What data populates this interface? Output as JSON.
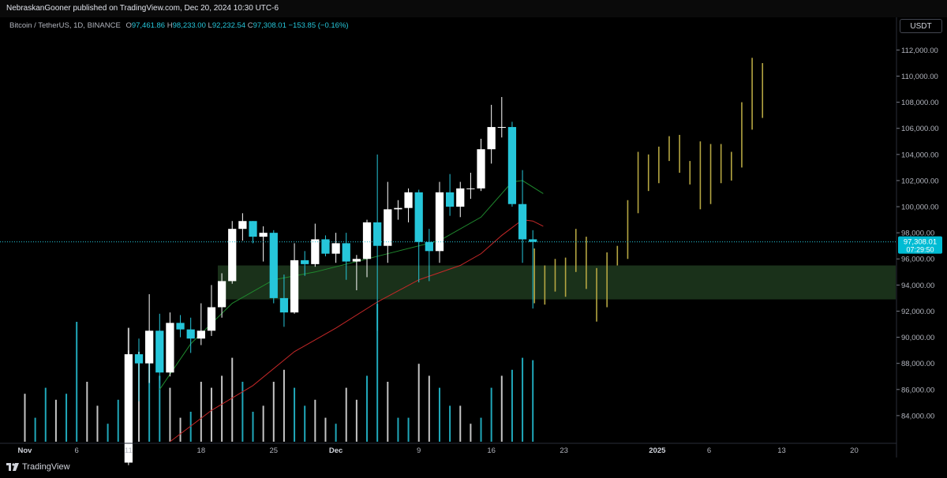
{
  "header": {
    "published_text": "NebraskanGooner published on TradingView.com, Dec 20, 2024 10:30 UTC-6"
  },
  "legend": {
    "symbol": "Bitcoin / TetherUS, 1D, BINANCE",
    "o_label": "O",
    "o": "97,461.86",
    "h_label": "H",
    "h": "98,233.00",
    "l_label": "L",
    "l": "92,232.54",
    "c_label": "C",
    "c": "97,308.01",
    "change": "−153.85 (−0.16%)"
  },
  "currency_button": "USDT",
  "last_price": {
    "label": "97,308.01",
    "countdown": "07:29:50",
    "value": 97308.01
  },
  "footer": {
    "brand": "TradingView"
  },
  "colors": {
    "up": "#ffffff",
    "down": "#26c6da",
    "projection": "#b5a642",
    "zone": "#1e3a1e",
    "ema_green": "#1f8a2e",
    "ema_red": "#c62828",
    "background": "#000000"
  },
  "chart_data": {
    "type": "candlestick",
    "y_axis": {
      "ticks": [
        {
          "value": 84000,
          "label": "84,000.00"
        },
        {
          "value": 86000,
          "label": "86,000.00"
        },
        {
          "value": 88000,
          "label": "88,000.00"
        },
        {
          "value": 90000,
          "label": "90,000.00"
        },
        {
          "value": 92000,
          "label": "92,000.00"
        },
        {
          "value": 94000,
          "label": "94,000.00"
        },
        {
          "value": 96000,
          "label": "96,000.00"
        },
        {
          "value": 98000,
          "label": "98,000.00"
        },
        {
          "value": 100000,
          "label": "100,000.00"
        },
        {
          "value": 102000,
          "label": "102,000.00"
        },
        {
          "value": 104000,
          "label": "104,000.00"
        },
        {
          "value": 106000,
          "label": "106,000.00"
        },
        {
          "value": 108000,
          "label": "108,000.00"
        },
        {
          "value": 110000,
          "label": "110,000.00"
        },
        {
          "value": 112000,
          "label": "112,000.00"
        }
      ],
      "range": [
        82000,
        114500
      ]
    },
    "x_axis": {
      "day_range": [
        "2024-11-01",
        "2025-01-24"
      ],
      "ticks": [
        {
          "date": "2024-11-01",
          "label": "Nov"
        },
        {
          "date": "2024-11-06",
          "label": "6"
        },
        {
          "date": "2024-11-11",
          "label": "11"
        },
        {
          "date": "2024-11-18",
          "label": "18"
        },
        {
          "date": "2024-11-25",
          "label": "25"
        },
        {
          "date": "2024-12-01",
          "label": "Dec"
        },
        {
          "date": "2024-12-09",
          "label": "9"
        },
        {
          "date": "2024-12-16",
          "label": "16"
        },
        {
          "date": "2024-12-23",
          "label": "23"
        },
        {
          "date": "2025-01-01",
          "label": "2025"
        },
        {
          "date": "2025-01-06",
          "label": "6"
        },
        {
          "date": "2025-01-13",
          "label": "13"
        },
        {
          "date": "2025-01-20",
          "label": "20"
        }
      ]
    },
    "candles": [
      {
        "date": "2024-11-11",
        "o": 80400,
        "h": 89000,
        "l": 80200,
        "c": 88700
      },
      {
        "date": "2024-11-12",
        "o": 88700,
        "h": 89900,
        "l": 85100,
        "c": 88000
      },
      {
        "date": "2024-11-13",
        "o": 88000,
        "h": 93300,
        "l": 86500,
        "c": 90500
      },
      {
        "date": "2024-11-14",
        "o": 90500,
        "h": 91800,
        "l": 86700,
        "c": 87300
      },
      {
        "date": "2024-11-15",
        "o": 87300,
        "h": 91900,
        "l": 87000,
        "c": 91100
      },
      {
        "date": "2024-11-16",
        "o": 91100,
        "h": 91700,
        "l": 90000,
        "c": 90600
      },
      {
        "date": "2024-11-17",
        "o": 90600,
        "h": 91500,
        "l": 88800,
        "c": 89900
      },
      {
        "date": "2024-11-18",
        "o": 89900,
        "h": 92600,
        "l": 89400,
        "c": 90500
      },
      {
        "date": "2024-11-19",
        "o": 90500,
        "h": 94000,
        "l": 90100,
        "c": 92300
      },
      {
        "date": "2024-11-20",
        "o": 92300,
        "h": 94900,
        "l": 91500,
        "c": 94300
      },
      {
        "date": "2024-11-21",
        "o": 94300,
        "h": 98900,
        "l": 94100,
        "c": 98300
      },
      {
        "date": "2024-11-22",
        "o": 98300,
        "h": 99500,
        "l": 97400,
        "c": 98900
      },
      {
        "date": "2024-11-23",
        "o": 98900,
        "h": 98900,
        "l": 97200,
        "c": 97700
      },
      {
        "date": "2024-11-24",
        "o": 97700,
        "h": 98500,
        "l": 95800,
        "c": 98000
      },
      {
        "date": "2024-11-25",
        "o": 98000,
        "h": 98200,
        "l": 92600,
        "c": 93000
      },
      {
        "date": "2024-11-26",
        "o": 93000,
        "h": 94800,
        "l": 90800,
        "c": 91900
      },
      {
        "date": "2024-11-27",
        "o": 91900,
        "h": 97200,
        "l": 91800,
        "c": 95900
      },
      {
        "date": "2024-11-28",
        "o": 95900,
        "h": 96600,
        "l": 94700,
        "c": 95600
      },
      {
        "date": "2024-11-29",
        "o": 95600,
        "h": 98700,
        "l": 95400,
        "c": 97500
      },
      {
        "date": "2024-11-30",
        "o": 97500,
        "h": 97800,
        "l": 96200,
        "c": 96400
      },
      {
        "date": "2024-12-01",
        "o": 96400,
        "h": 98000,
        "l": 95700,
        "c": 97200
      },
      {
        "date": "2024-12-02",
        "o": 97200,
        "h": 98000,
        "l": 94400,
        "c": 95800
      },
      {
        "date": "2024-12-03",
        "o": 95800,
        "h": 96300,
        "l": 93600,
        "c": 96000
      },
      {
        "date": "2024-12-04",
        "o": 96000,
        "h": 99000,
        "l": 94600,
        "c": 98800
      },
      {
        "date": "2024-12-05",
        "o": 98800,
        "h": 104000,
        "l": 90500,
        "c": 97000
      },
      {
        "date": "2024-12-06",
        "o": 97000,
        "h": 101900,
        "l": 95700,
        "c": 99800
      },
      {
        "date": "2024-12-07",
        "o": 99800,
        "h": 100500,
        "l": 99000,
        "c": 99900
      },
      {
        "date": "2024-12-08",
        "o": 99900,
        "h": 101400,
        "l": 98800,
        "c": 101100
      },
      {
        "date": "2024-12-09",
        "o": 101100,
        "h": 101300,
        "l": 94200,
        "c": 97300
      },
      {
        "date": "2024-12-10",
        "o": 97300,
        "h": 98300,
        "l": 94300,
        "c": 96600
      },
      {
        "date": "2024-12-11",
        "o": 96600,
        "h": 101900,
        "l": 95700,
        "c": 101100
      },
      {
        "date": "2024-12-12",
        "o": 101100,
        "h": 102500,
        "l": 99300,
        "c": 100000
      },
      {
        "date": "2024-12-13",
        "o": 100000,
        "h": 101900,
        "l": 99200,
        "c": 101400
      },
      {
        "date": "2024-12-14",
        "o": 101400,
        "h": 102600,
        "l": 100600,
        "c": 101400
      },
      {
        "date": "2024-12-15",
        "o": 101400,
        "h": 105200,
        "l": 101200,
        "c": 104400
      },
      {
        "date": "2024-12-16",
        "o": 104400,
        "h": 107800,
        "l": 103300,
        "c": 106100
      },
      {
        "date": "2024-12-17",
        "o": 106100,
        "h": 108400,
        "l": 105300,
        "c": 106100
      },
      {
        "date": "2024-12-18",
        "o": 106100,
        "h": 106500,
        "l": 100000,
        "c": 100200
      },
      {
        "date": "2024-12-19",
        "o": 100200,
        "h": 102800,
        "l": 95700,
        "c": 97500
      },
      {
        "date": "2024-12-20",
        "o": 97500,
        "h": 98200,
        "l": 92200,
        "c": 97300
      }
    ],
    "volume": [
      {
        "date": "2024-11-01",
        "v": 0.4
      },
      {
        "date": "2024-11-02",
        "v": 0.2
      },
      {
        "date": "2024-11-03",
        "v": 0.45
      },
      {
        "date": "2024-11-04",
        "v": 0.35
      },
      {
        "date": "2024-11-05",
        "v": 0.4
      },
      {
        "date": "2024-11-06",
        "v": 1.0
      },
      {
        "date": "2024-11-07",
        "v": 0.5
      },
      {
        "date": "2024-11-08",
        "v": 0.3
      },
      {
        "date": "2024-11-09",
        "v": 0.15
      },
      {
        "date": "2024-11-10",
        "v": 0.35
      },
      {
        "date": "2024-11-11",
        "v": 0.95
      },
      {
        "date": "2024-11-12",
        "v": 0.75
      },
      {
        "date": "2024-11-13",
        "v": 0.85
      },
      {
        "date": "2024-11-14",
        "v": 0.55
      },
      {
        "date": "2024-11-15",
        "v": 0.45
      },
      {
        "date": "2024-11-16",
        "v": 0.2
      },
      {
        "date": "2024-11-17",
        "v": 0.25
      },
      {
        "date": "2024-11-18",
        "v": 0.5
      },
      {
        "date": "2024-11-19",
        "v": 0.45
      },
      {
        "date": "2024-11-20",
        "v": 0.55
      },
      {
        "date": "2024-11-21",
        "v": 0.7
      },
      {
        "date": "2024-11-22",
        "v": 0.5
      },
      {
        "date": "2024-11-23",
        "v": 0.25
      },
      {
        "date": "2024-11-24",
        "v": 0.3
      },
      {
        "date": "2024-11-25",
        "v": 0.5
      },
      {
        "date": "2024-11-26",
        "v": 0.6
      },
      {
        "date": "2024-11-27",
        "v": 0.45
      },
      {
        "date": "2024-11-28",
        "v": 0.3
      },
      {
        "date": "2024-11-29",
        "v": 0.35
      },
      {
        "date": "2024-11-30",
        "v": 0.2
      },
      {
        "date": "2024-12-01",
        "v": 0.15
      },
      {
        "date": "2024-12-02",
        "v": 0.45
      },
      {
        "date": "2024-12-03",
        "v": 0.35
      },
      {
        "date": "2024-12-04",
        "v": 0.55
      },
      {
        "date": "2024-12-05",
        "v": 1.15
      },
      {
        "date": "2024-12-06",
        "v": 0.5
      },
      {
        "date": "2024-12-07",
        "v": 0.2
      },
      {
        "date": "2024-12-08",
        "v": 0.2
      },
      {
        "date": "2024-12-09",
        "v": 0.65
      },
      {
        "date": "2024-12-10",
        "v": 0.55
      },
      {
        "date": "2024-12-11",
        "v": 0.45
      },
      {
        "date": "2024-12-12",
        "v": 0.3
      },
      {
        "date": "2024-12-13",
        "v": 0.3
      },
      {
        "date": "2024-12-14",
        "v": 0.15
      },
      {
        "date": "2024-12-15",
        "v": 0.2
      },
      {
        "date": "2024-12-16",
        "v": 0.45
      },
      {
        "date": "2024-12-17",
        "v": 0.55
      },
      {
        "date": "2024-12-18",
        "v": 0.6
      },
      {
        "date": "2024-12-19",
        "v": 0.7
      },
      {
        "date": "2024-12-20",
        "v": 0.68
      }
    ],
    "volume_dirs": "uddudduudduudduuduuuudduuudduuduuddudduudduudduddd",
    "ema_green": [
      [
        13,
        86000
      ],
      [
        16,
        89500
      ],
      [
        20,
        92600
      ],
      [
        24,
        94400
      ],
      [
        28,
        95000
      ],
      [
        32,
        95800
      ],
      [
        36,
        96600
      ],
      [
        40,
        97400
      ],
      [
        44,
        99200
      ],
      [
        47,
        101900
      ],
      [
        48,
        102000
      ],
      [
        50,
        101000
      ]
    ],
    "ema_red": [
      [
        14,
        82000
      ],
      [
        18,
        84400
      ],
      [
        22,
        86300
      ],
      [
        26,
        88900
      ],
      [
        30,
        90700
      ],
      [
        34,
        92700
      ],
      [
        38,
        94400
      ],
      [
        42,
        95500
      ],
      [
        44,
        96400
      ],
      [
        46,
        97800
      ],
      [
        48,
        99000
      ],
      [
        49,
        98900
      ],
      [
        50,
        98500
      ]
    ],
    "zone": {
      "from": "2024-11-20",
      "to": "2025-01-24",
      "low": 92900,
      "high": 95500
    },
    "projection": [
      {
        "date": "2024-12-20",
        "o": 96800,
        "h": 96800,
        "l": 92600,
        "c": 93000
      },
      {
        "date": "2024-12-21",
        "o": 93000,
        "h": 95500,
        "l": 92500,
        "c": 95200
      },
      {
        "date": "2024-12-22",
        "o": 95200,
        "h": 96000,
        "l": 93500,
        "c": 94000
      },
      {
        "date": "2024-12-23",
        "o": 94000,
        "h": 96100,
        "l": 93100,
        "c": 95800
      },
      {
        "date": "2024-12-24",
        "o": 95800,
        "h": 98300,
        "l": 95000,
        "c": 97200
      },
      {
        "date": "2024-12-25",
        "o": 97200,
        "h": 97700,
        "l": 93700,
        "c": 94500
      },
      {
        "date": "2024-12-26",
        "o": 94500,
        "h": 95300,
        "l": 91200,
        "c": 92500
      },
      {
        "date": "2024-12-27",
        "o": 92500,
        "h": 96500,
        "l": 92300,
        "c": 96000
      },
      {
        "date": "2024-12-28",
        "o": 96000,
        "h": 97000,
        "l": 95500,
        "c": 96800
      },
      {
        "date": "2024-12-29",
        "o": 96800,
        "h": 100500,
        "l": 96000,
        "c": 100200
      },
      {
        "date": "2024-12-30",
        "o": 100200,
        "h": 104200,
        "l": 99500,
        "c": 103500
      },
      {
        "date": "2024-12-31",
        "o": 103500,
        "h": 104000,
        "l": 101200,
        "c": 102000
      },
      {
        "date": "2025-01-01",
        "o": 102000,
        "h": 104600,
        "l": 101800,
        "c": 104400
      },
      {
        "date": "2025-01-02",
        "o": 104400,
        "h": 105400,
        "l": 103500,
        "c": 105000
      },
      {
        "date": "2025-01-03",
        "o": 105000,
        "h": 105500,
        "l": 102600,
        "c": 103000
      },
      {
        "date": "2025-01-04",
        "o": 103000,
        "h": 103500,
        "l": 101700,
        "c": 102800
      },
      {
        "date": "2025-01-05",
        "o": 102800,
        "h": 105000,
        "l": 99800,
        "c": 100400
      },
      {
        "date": "2025-01-06",
        "o": 100400,
        "h": 104800,
        "l": 100200,
        "c": 104300
      },
      {
        "date": "2025-01-07",
        "o": 104300,
        "h": 104800,
        "l": 101800,
        "c": 102300
      },
      {
        "date": "2025-01-08",
        "o": 102300,
        "h": 104200,
        "l": 102000,
        "c": 103200
      },
      {
        "date": "2025-01-09",
        "o": 103200,
        "h": 108000,
        "l": 103000,
        "c": 106000
      },
      {
        "date": "2025-01-10",
        "o": 106000,
        "h": 111400,
        "l": 105900,
        "c": 111000
      },
      {
        "date": "2025-01-11",
        "o": 111000,
        "h": 111000,
        "l": 106800,
        "c": 107000
      }
    ]
  }
}
